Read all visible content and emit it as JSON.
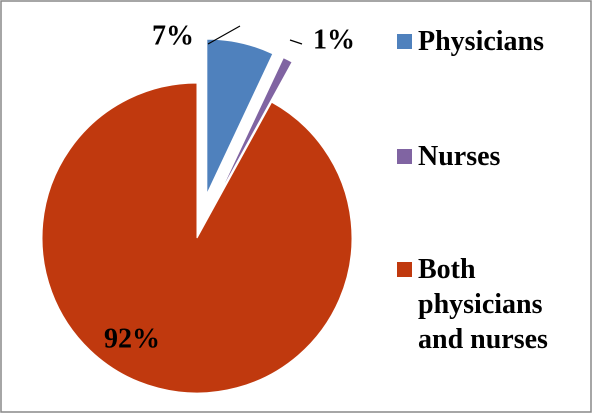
{
  "chart_data": {
    "type": "pie",
    "categories": [
      "Physicians",
      "Nurses",
      "Both physicians and nurses"
    ],
    "values": [
      7,
      1,
      92
    ],
    "value_labels": [
      "7%",
      "1%",
      "92%"
    ],
    "colors": [
      "#4f81bd",
      "#8064a2",
      "#c0390e"
    ]
  }
}
